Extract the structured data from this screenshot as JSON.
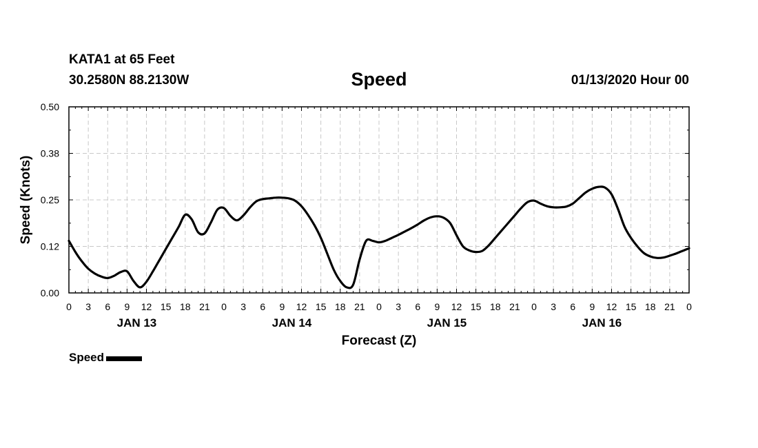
{
  "header": {
    "station": "KATA1 at 65 Feet",
    "coords": "30.2580N 88.2130W",
    "title": "Speed",
    "datetime": "01/13/2020 Hour 00"
  },
  "legend": {
    "label": "Speed"
  },
  "chart_data": {
    "type": "line",
    "title": "Speed",
    "xlabel": "Forecast (Z)",
    "ylabel": "Speed (Knots)",
    "ylim": [
      0,
      0.5
    ],
    "yticks": [
      "0.00",
      "0.12",
      "0.25",
      "0.38",
      "0.50"
    ],
    "xticks": [
      "0",
      "3",
      "6",
      "9",
      "12",
      "15",
      "18",
      "21",
      "0",
      "3",
      "6",
      "9",
      "12",
      "15",
      "18",
      "21",
      "0",
      "3",
      "6",
      "9",
      "12",
      "15",
      "18",
      "21",
      "0",
      "3",
      "6",
      "9",
      "12",
      "15",
      "18",
      "21",
      "0"
    ],
    "day_labels": [
      "JAN 13",
      "JAN 14",
      "JAN 15",
      "JAN 16"
    ],
    "grid": true,
    "legend": "bottom-left",
    "series": [
      {
        "name": "Speed",
        "color": "#000000",
        "x": [
          0,
          1,
          2,
          3,
          4,
          5,
          6,
          7,
          8,
          9,
          10,
          11,
          12,
          13,
          14,
          15,
          16,
          17,
          18,
          19,
          20,
          21,
          22,
          23,
          24,
          25,
          26,
          27,
          28,
          29,
          30,
          31,
          32,
          33,
          34,
          35,
          36,
          37,
          38,
          39,
          40,
          41,
          42,
          43,
          44,
          45,
          46,
          47,
          48,
          49,
          50,
          51,
          52,
          53,
          54,
          55,
          56,
          57,
          58,
          59,
          60,
          61,
          62,
          63,
          64,
          65,
          66,
          67,
          68,
          69,
          70,
          71,
          72,
          73,
          74,
          75,
          76,
          77,
          78,
          79,
          80,
          81,
          82,
          83,
          84,
          85,
          86,
          87,
          88,
          89,
          90,
          91,
          92,
          93,
          94,
          95,
          96
        ],
        "values": [
          0.14,
          0.11,
          0.085,
          0.065,
          0.052,
          0.044,
          0.04,
          0.046,
          0.056,
          0.058,
          0.032,
          0.015,
          0.03,
          0.058,
          0.088,
          0.118,
          0.148,
          0.178,
          0.21,
          0.198,
          0.163,
          0.16,
          0.19,
          0.224,
          0.228,
          0.207,
          0.195,
          0.208,
          0.229,
          0.246,
          0.252,
          0.254,
          0.256,
          0.256,
          0.254,
          0.248,
          0.233,
          0.21,
          0.182,
          0.148,
          0.105,
          0.062,
          0.032,
          0.015,
          0.022,
          0.09,
          0.14,
          0.14,
          0.136,
          0.14,
          0.148,
          0.156,
          0.165,
          0.174,
          0.184,
          0.195,
          0.203,
          0.206,
          0.202,
          0.188,
          0.155,
          0.125,
          0.114,
          0.11,
          0.113,
          0.128,
          0.148,
          0.168,
          0.188,
          0.208,
          0.228,
          0.244,
          0.248,
          0.24,
          0.233,
          0.23,
          0.23,
          0.232,
          0.24,
          0.255,
          0.27,
          0.28,
          0.285,
          0.283,
          0.265,
          0.225,
          0.178,
          0.148,
          0.125,
          0.107,
          0.098,
          0.094,
          0.095,
          0.1,
          0.106,
          0.113,
          0.12
        ]
      }
    ]
  }
}
